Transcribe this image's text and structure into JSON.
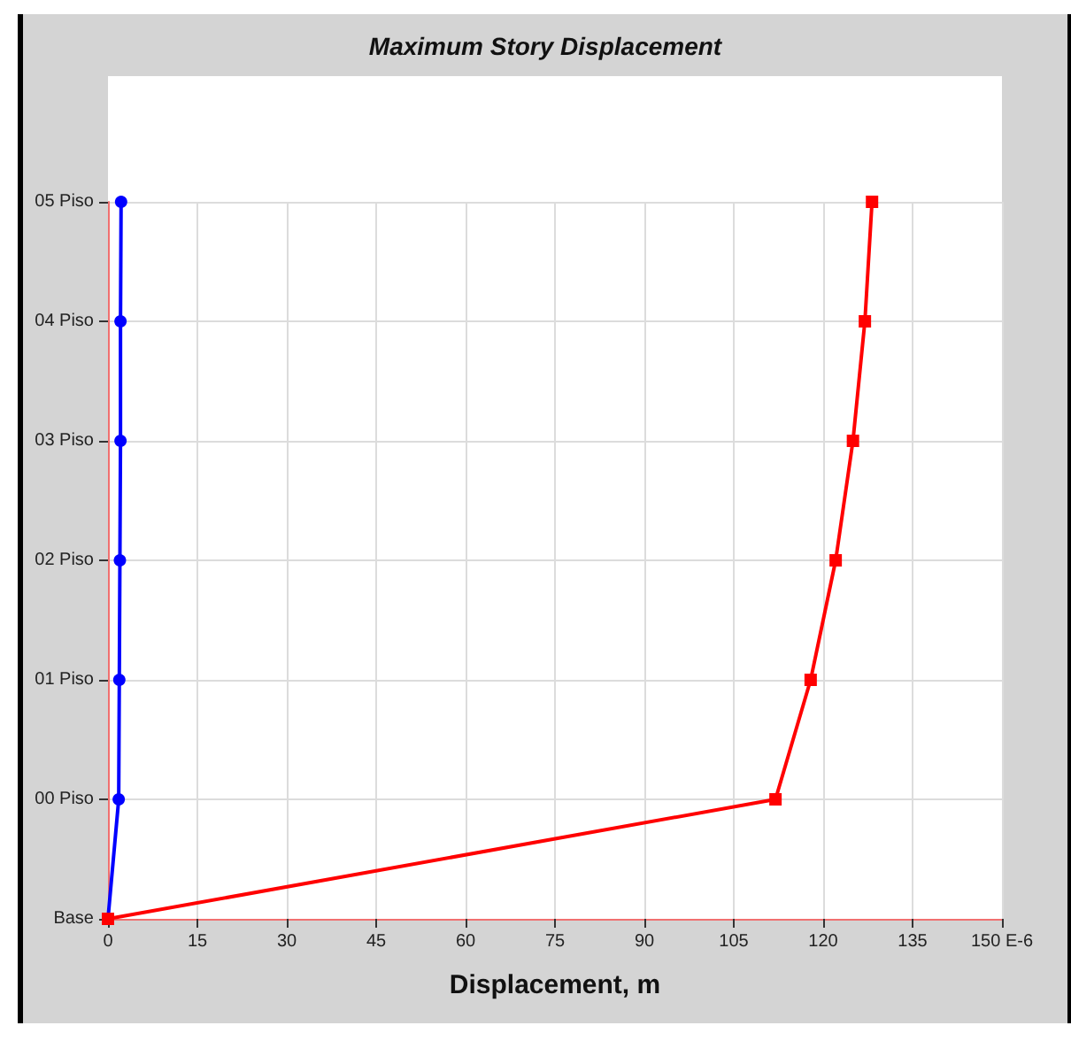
{
  "chart_data": {
    "type": "line",
    "orientation": "horizontal",
    "title": "Maximum Story Displacement",
    "xlabel": "Displacement, m",
    "xlim": [
      0,
      150
    ],
    "xticks": [
      0,
      15,
      30,
      45,
      60,
      75,
      90,
      105,
      120,
      135,
      {
        "value": 150,
        "label": "150 E-6"
      }
    ],
    "categories": [
      "05 Piso",
      "04 Piso",
      "03 Piso",
      "02 Piso",
      "01 Piso",
      "00 Piso",
      "Base"
    ],
    "grid": true,
    "series": [
      {
        "color": "#0000ff",
        "marker": "circle",
        "values": [
          2.2,
          2.1,
          2.1,
          2,
          1.9,
          1.8,
          0
        ]
      },
      {
        "color": "#ff0000",
        "marker": "square",
        "values": [
          128.2,
          127,
          125,
          122.1,
          117.9,
          112,
          0
        ]
      }
    ]
  }
}
